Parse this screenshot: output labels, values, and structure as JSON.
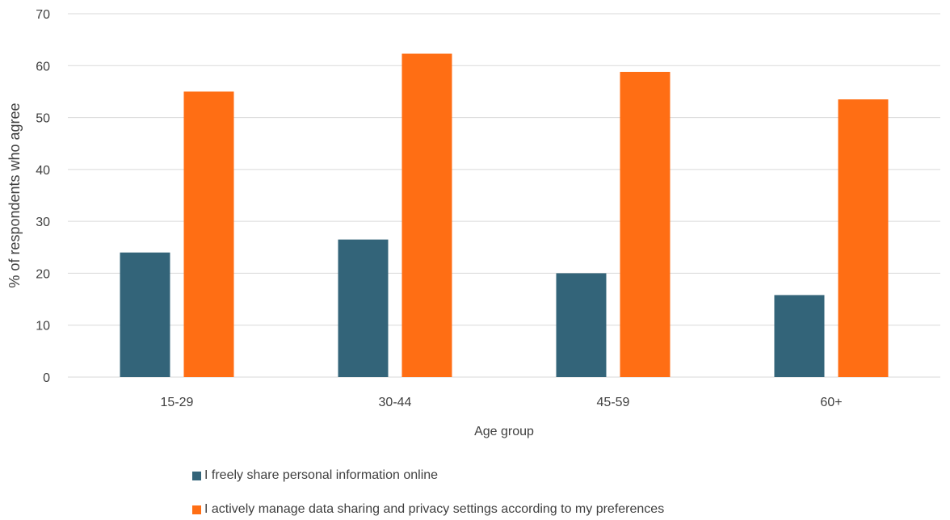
{
  "chart_data": {
    "type": "bar",
    "title": "",
    "xlabel": "Age group",
    "ylabel": "% of respondents who agree",
    "categories": [
      "15-29",
      "30-44",
      "45-59",
      "60+"
    ],
    "ylim": [
      0,
      70
    ],
    "yticks": [
      0,
      10,
      20,
      30,
      40,
      50,
      60,
      70
    ],
    "grid": true,
    "legend_position": "bottom",
    "series": [
      {
        "name": "I freely share personal information online",
        "color": "#336479",
        "values": [
          24.0,
          26.5,
          20.0,
          15.8
        ]
      },
      {
        "name": "I actively manage data sharing and privacy settings according to my preferences",
        "color": "#ff6e14",
        "values": [
          55.0,
          62.3,
          58.8,
          53.5
        ]
      }
    ]
  }
}
